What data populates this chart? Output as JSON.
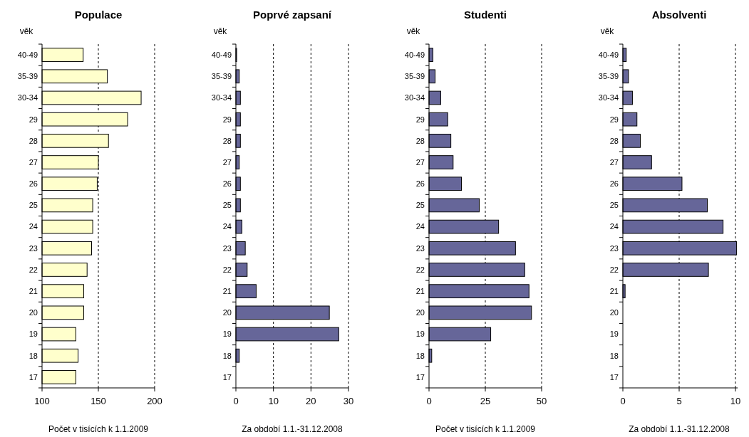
{
  "chart_data": [
    {
      "type": "bar",
      "orientation": "horizontal",
      "title": "Populace",
      "ylabel": "věk",
      "xlabel": "Počet v tisících k 1.1.2009",
      "categories": [
        "40-49",
        "35-39",
        "30-34",
        "29",
        "28",
        "27",
        "26",
        "25",
        "24",
        "23",
        "22",
        "21",
        "20",
        "19",
        "18",
        "17"
      ],
      "values": [
        136.5,
        158,
        188,
        176,
        159,
        150,
        149,
        145,
        145,
        144,
        140,
        137,
        137,
        130,
        132,
        130
      ],
      "color": "#ffffcc",
      "xlim": [
        100,
        200
      ],
      "xticks": [
        100,
        150,
        200
      ],
      "grid": "x"
    },
    {
      "type": "bar",
      "orientation": "horizontal",
      "title": "Poprvé zapsaní",
      "ylabel": "věk",
      "xlabel": "Za období 1.1.-31.12.2008",
      "categories": [
        "40-49",
        "35-39",
        "30-34",
        "29",
        "28",
        "27",
        "26",
        "25",
        "24",
        "23",
        "22",
        "21",
        "20",
        "19",
        "18",
        "17"
      ],
      "values": [
        0.2,
        0.9,
        1.2,
        1.2,
        1.2,
        0.9,
        1.2,
        1.2,
        1.6,
        2.5,
        3.0,
        5.4,
        24.9,
        27.4,
        0.9,
        0
      ],
      "color": "#666699",
      "xlim": [
        0,
        30
      ],
      "xticks": [
        0,
        10,
        20,
        30
      ],
      "grid": "x"
    },
    {
      "type": "bar",
      "orientation": "horizontal",
      "title": "Studenti",
      "ylabel": "věk",
      "xlabel": "Počet v tisících k 1.1.2009",
      "categories": [
        "40-49",
        "35-39",
        "30-34",
        "29",
        "28",
        "27",
        "26",
        "25",
        "24",
        "23",
        "22",
        "21",
        "20",
        "19",
        "18",
        "17"
      ],
      "values": [
        1.7,
        2.7,
        5.2,
        8.3,
        9.7,
        10.7,
        14.4,
        22.3,
        30.9,
        38.4,
        42.5,
        44.4,
        45.5,
        27.4,
        1.2,
        0
      ],
      "color": "#666699",
      "xlim": [
        0,
        50
      ],
      "xticks": [
        0,
        25,
        50
      ],
      "grid": "x"
    },
    {
      "type": "bar",
      "orientation": "horizontal",
      "title": "Absolventi",
      "ylabel": "věk",
      "xlabel": "Za období 1.1.-31.12.2008",
      "categories": [
        "40-49",
        "35-39",
        "30-34",
        "29",
        "28",
        "27",
        "26",
        "25",
        "24",
        "23",
        "22",
        "21",
        "20",
        "19",
        "18",
        "17"
      ],
      "values": [
        0.3,
        0.5,
        0.85,
        1.25,
        1.55,
        2.55,
        5.25,
        7.5,
        8.9,
        10.1,
        7.6,
        0.2,
        0,
        0,
        0,
        0
      ],
      "color": "#666699",
      "xlim": [
        0,
        10.2
      ],
      "xticks": [
        0,
        5,
        10
      ],
      "grid": "x"
    }
  ]
}
